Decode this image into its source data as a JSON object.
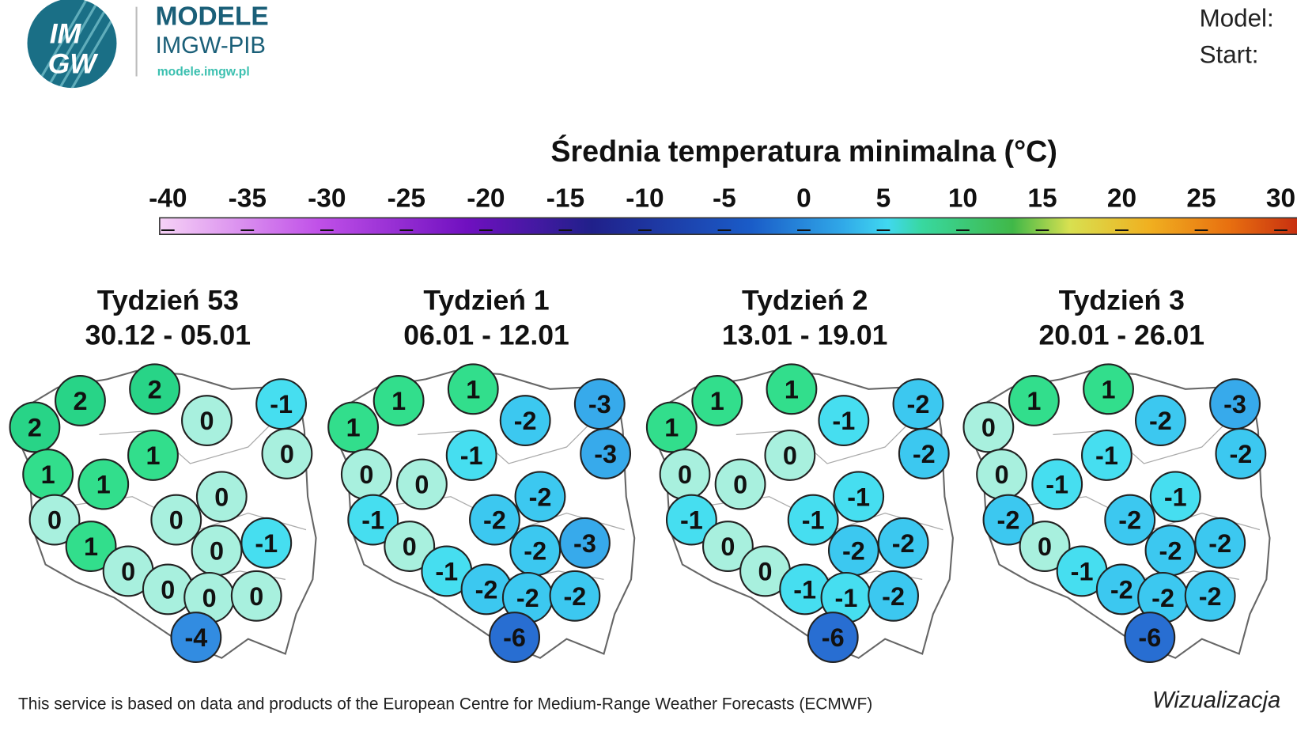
{
  "header": {
    "logo_top": "IM",
    "logo_bottom": "GW",
    "brand": "MODELE",
    "brand_sub": "IMGW-PIB",
    "url": "modele.imgw.pl",
    "model_label": "Model:",
    "start_label": "Start:"
  },
  "legend": {
    "title": "Średnia temperatura minimalna (°C)",
    "ticks": [
      -40,
      -35,
      -30,
      -25,
      -20,
      -15,
      -10,
      -5,
      0,
      5,
      10,
      15,
      20,
      25,
      30
    ]
  },
  "panels": [
    {
      "week": "Tydzień 53",
      "dates": "30.12 - 05.01",
      "values": [
        2,
        2,
        2,
        0,
        -1,
        0,
        1,
        1,
        1,
        0,
        0,
        0,
        1,
        0,
        -1,
        0,
        0,
        0,
        0,
        -4
      ]
    },
    {
      "week": "Tydzień 1",
      "dates": "06.01 - 12.01",
      "values": [
        1,
        1,
        1,
        -2,
        -3,
        -3,
        -1,
        0,
        0,
        -2,
        -2,
        -1,
        0,
        -2,
        -3,
        -1,
        -2,
        -2,
        -2,
        -6
      ]
    },
    {
      "week": "Tydzień 2",
      "dates": "13.01 - 19.01",
      "values": [
        1,
        1,
        1,
        -1,
        -2,
        -2,
        0,
        0,
        0,
        -1,
        -1,
        -1,
        0,
        -2,
        -2,
        0,
        -1,
        -1,
        -2,
        -6
      ]
    },
    {
      "week": "Tydzień 3",
      "dates": "20.01 - 26.01",
      "values": [
        1,
        1,
        0,
        -2,
        -3,
        -2,
        -1,
        0,
        -1,
        -1,
        -2,
        -2,
        0,
        -2,
        -2,
        -1,
        -2,
        -2,
        -2,
        -6
      ]
    }
  ],
  "footer": {
    "credit": "This service is based on data and products of the European Centre for Medium-Range Weather Forecasts (ECMWF)",
    "viz": "Wizualizacja"
  }
}
